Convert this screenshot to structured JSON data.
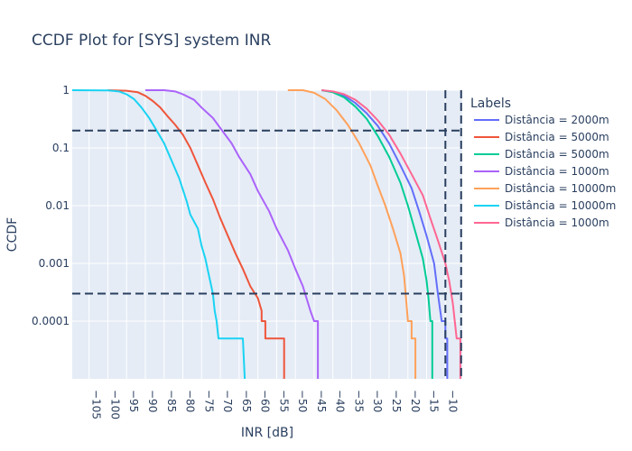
{
  "chart_data": {
    "type": "line",
    "title": "CCDF Plot for [SYS] system INR",
    "xlabel": "INR [dB]",
    "ylabel": "CCDF",
    "x_reversed": true,
    "y_scale": "log",
    "xlim": [
      -109.5,
      -5.5
    ],
    "ylim": [
      1e-05,
      1
    ],
    "x_ticks": [
      -105,
      -100,
      -95,
      -90,
      -85,
      -80,
      -75,
      -70,
      -65,
      -60,
      -55,
      -50,
      -45,
      -40,
      -35,
      -30,
      -25,
      -20,
      -15,
      -10
    ],
    "x_tick_labels": [
      "−105",
      "−100",
      "−95",
      "−90",
      "−85",
      "−80",
      "−75",
      "−70",
      "−65",
      "−60",
      "−55",
      "−50",
      "−45",
      "−40",
      "−35",
      "−30",
      "−25",
      "−20",
      "−15",
      "−10"
    ],
    "y_ticks": [
      1,
      0.1,
      0.01,
      0.001,
      0.0001
    ],
    "y_tick_labels": [
      "1",
      "0.1",
      "0.01",
      "0.001",
      "0.0001"
    ],
    "grid": true,
    "legend_title": "Labels",
    "legend_position": "right",
    "reference_lines": {
      "horizontal": [
        0.2,
        0.0003
      ],
      "vertical": [
        -10,
        -5.8
      ],
      "color": "#2a3f5f",
      "dash": "dashed"
    },
    "series": [
      {
        "name": "Distância = 2000m",
        "color": "#636efa",
        "points": [
          [
            -43,
            1
          ],
          [
            -40,
            0.93
          ],
          [
            -37,
            0.8
          ],
          [
            -34,
            0.6
          ],
          [
            -31,
            0.4
          ],
          [
            -28,
            0.24
          ],
          [
            -25,
            0.12
          ],
          [
            -22,
            0.05
          ],
          [
            -19,
            0.02
          ],
          [
            -17,
            0.008
          ],
          [
            -15,
            0.003
          ],
          [
            -13,
            0.001
          ],
          [
            -12,
            0.0003
          ],
          [
            -11,
            0.0001
          ],
          [
            -10,
            0.0001
          ],
          [
            -10,
            5e-05
          ],
          [
            -9.5,
            5e-05
          ],
          [
            -9.5,
            1e-05
          ]
        ]
      },
      {
        "name": "Distância = 5000m",
        "color": "#ef553b",
        "points": [
          [
            -100,
            1
          ],
          [
            -95,
            0.98
          ],
          [
            -92,
            0.92
          ],
          [
            -90,
            0.8
          ],
          [
            -88,
            0.65
          ],
          [
            -86,
            0.5
          ],
          [
            -84,
            0.35
          ],
          [
            -82,
            0.25
          ],
          [
            -80,
            0.17
          ],
          [
            -78,
            0.1
          ],
          [
            -76,
            0.05
          ],
          [
            -74,
            0.025
          ],
          [
            -72,
            0.013
          ],
          [
            -70,
            0.006
          ],
          [
            -68,
            0.003
          ],
          [
            -66,
            0.0015
          ],
          [
            -64,
            0.0008
          ],
          [
            -62,
            0.0004
          ],
          [
            -60,
            0.00025
          ],
          [
            -59,
            0.00015
          ],
          [
            -59,
            0.0001
          ],
          [
            -58,
            0.0001
          ],
          [
            -58,
            5e-05
          ],
          [
            -53,
            5e-05
          ],
          [
            -53,
            1e-05
          ]
        ]
      },
      {
        "name": "Distância = 5000m",
        "color": "#00cc96",
        "points": [
          [
            -43,
            1
          ],
          [
            -40,
            0.92
          ],
          [
            -37,
            0.75
          ],
          [
            -34,
            0.52
          ],
          [
            -31,
            0.32
          ],
          [
            -28,
            0.16
          ],
          [
            -25,
            0.07
          ],
          [
            -22,
            0.025
          ],
          [
            -20,
            0.01
          ],
          [
            -18,
            0.0035
          ],
          [
            -16,
            0.0012
          ],
          [
            -15,
            0.0005
          ],
          [
            -14.5,
            0.00025
          ],
          [
            -14,
            0.0001
          ],
          [
            -13.5,
            0.0001
          ],
          [
            -13.5,
            1e-05
          ]
        ]
      },
      {
        "name": "Distância = 1000m",
        "color": "#ab63fa",
        "points": [
          [
            -90,
            1
          ],
          [
            -85,
            1
          ],
          [
            -82,
            0.95
          ],
          [
            -80,
            0.85
          ],
          [
            -77,
            0.68
          ],
          [
            -75,
            0.5
          ],
          [
            -72,
            0.33
          ],
          [
            -70,
            0.22
          ],
          [
            -67,
            0.12
          ],
          [
            -65,
            0.07
          ],
          [
            -62,
            0.035
          ],
          [
            -60,
            0.018
          ],
          [
            -57,
            0.008
          ],
          [
            -55,
            0.004
          ],
          [
            -52,
            0.0017
          ],
          [
            -50,
            0.0008
          ],
          [
            -48,
            0.0004
          ],
          [
            -46,
            0.00015
          ],
          [
            -45,
            0.0001
          ],
          [
            -44,
            0.0001
          ],
          [
            -44,
            1e-05
          ]
        ]
      },
      {
        "name": "Distância = 10000m",
        "color": "#ffa15a",
        "points": [
          [
            -52,
            1
          ],
          [
            -48,
            1
          ],
          [
            -45,
            0.9
          ],
          [
            -42,
            0.7
          ],
          [
            -39,
            0.45
          ],
          [
            -36,
            0.25
          ],
          [
            -33,
            0.12
          ],
          [
            -30,
            0.05
          ],
          [
            -28,
            0.022
          ],
          [
            -26,
            0.01
          ],
          [
            -24,
            0.004
          ],
          [
            -22,
            0.0015
          ],
          [
            -21,
            0.0006
          ],
          [
            -20.5,
            0.00025
          ],
          [
            -20,
            0.0001
          ],
          [
            -19,
            0.0001
          ],
          [
            -19,
            5e-05
          ],
          [
            -18,
            5e-05
          ],
          [
            -18,
            1e-05
          ]
        ]
      },
      {
        "name": "Distância = 10000m",
        "color": "#19d3f3",
        "points": [
          [
            -109.5,
            1
          ],
          [
            -100,
            0.99
          ],
          [
            -97,
            0.95
          ],
          [
            -95,
            0.85
          ],
          [
            -93,
            0.7
          ],
          [
            -91,
            0.5
          ],
          [
            -89,
            0.33
          ],
          [
            -87,
            0.2
          ],
          [
            -85,
            0.12
          ],
          [
            -83,
            0.06
          ],
          [
            -81,
            0.03
          ],
          [
            -79,
            0.012
          ],
          [
            -78,
            0.007
          ],
          [
            -76,
            0.004
          ],
          [
            -75,
            0.002
          ],
          [
            -74,
            0.0012
          ],
          [
            -73,
            0.0006
          ],
          [
            -72,
            0.0003
          ],
          [
            -71.5,
            0.00015
          ],
          [
            -71,
            0.0001
          ],
          [
            -70.5,
            5e-05
          ],
          [
            -64,
            5e-05
          ],
          [
            -63.5,
            1e-05
          ]
        ]
      },
      {
        "name": "Distância = 1000m",
        "color": "#ff6692",
        "points": [
          [
            -43,
            1
          ],
          [
            -40,
            0.95
          ],
          [
            -37,
            0.85
          ],
          [
            -34,
            0.68
          ],
          [
            -31,
            0.48
          ],
          [
            -28,
            0.3
          ],
          [
            -25,
            0.17
          ],
          [
            -22,
            0.08
          ],
          [
            -19,
            0.035
          ],
          [
            -16,
            0.015
          ],
          [
            -14,
            0.006
          ],
          [
            -12,
            0.0025
          ],
          [
            -10,
            0.001
          ],
          [
            -9,
            0.0005
          ],
          [
            -8,
            0.0002
          ],
          [
            -7.5,
            0.0001
          ],
          [
            -7,
            5e-05
          ],
          [
            -6,
            5e-05
          ],
          [
            -6,
            1e-05
          ]
        ]
      }
    ]
  }
}
